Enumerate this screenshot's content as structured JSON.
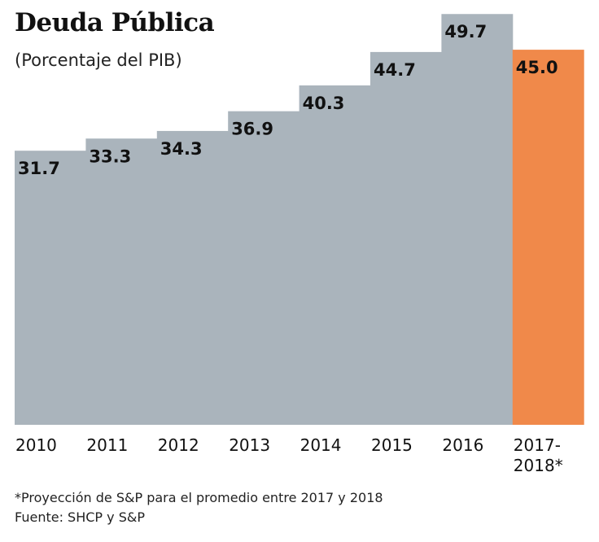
{
  "chart_data": {
    "type": "bar",
    "title": "Deuda Pública",
    "subtitle": "(Porcentaje del PIB)",
    "categories": [
      "2010",
      "2011",
      "2012",
      "2013",
      "2014",
      "2015",
      "2016",
      "2017-\n2018*"
    ],
    "values": [
      31.7,
      33.3,
      34.3,
      36.9,
      40.3,
      44.7,
      49.7,
      45.0
    ],
    "value_labels": [
      "31.7",
      "33.3",
      "34.3",
      "36.9",
      "40.3",
      "44.7",
      "49.7",
      "45.0"
    ],
    "colors": [
      "#aab4bc",
      "#aab4bc",
      "#aab4bc",
      "#aab4bc",
      "#aab4bc",
      "#aab4bc",
      "#aab4bc",
      "#f0894a"
    ],
    "grid": false,
    "legend": "none",
    "xlabel": "",
    "ylabel": ""
  },
  "footnotes": {
    "projection": "*Proyección de S&P para el promedio entre 2017 y 2018",
    "source": "Fuente: SHCP y S&P"
  }
}
